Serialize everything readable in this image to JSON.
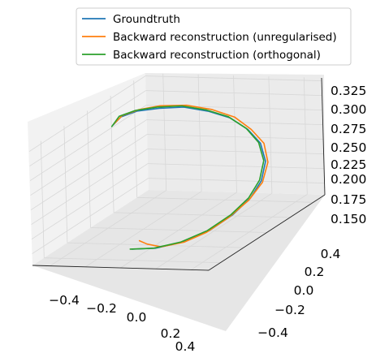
{
  "chart_data": {
    "type": "line",
    "projection": "3d",
    "title": "",
    "xlabel": "",
    "ylabel": "",
    "zlabel": "",
    "xlim": [
      -0.5,
      0.5
    ],
    "ylim": [
      -0.5,
      0.5
    ],
    "zlim": [
      0.13,
      0.33
    ],
    "grid": true,
    "legend_position": "top-right",
    "ticks": {
      "x": [
        "−0.4",
        "−0.2",
        "0.0",
        "0.2",
        "0.4"
      ],
      "y": [
        "−0.4",
        "−0.2",
        "0.0",
        "0.2",
        "0.4"
      ],
      "z": [
        "0.150",
        "0.175",
        "0.200",
        "0.225",
        "0.250",
        "0.275",
        "0.300",
        "0.325"
      ]
    },
    "series": [
      {
        "name": "Groundtruth",
        "color": "#1f77b4",
        "points": [
          [
            -0.02,
            -0.37,
            0.145
          ],
          [
            0.1,
            -0.35,
            0.145
          ],
          [
            0.22,
            -0.3,
            0.15
          ],
          [
            0.32,
            -0.22,
            0.16
          ],
          [
            0.39,
            -0.12,
            0.175
          ],
          [
            0.42,
            -0.01,
            0.19
          ],
          [
            0.41,
            0.1,
            0.205
          ],
          [
            0.37,
            0.2,
            0.225
          ],
          [
            0.29,
            0.28,
            0.245
          ],
          [
            0.18,
            0.34,
            0.26
          ],
          [
            0.06,
            0.37,
            0.275
          ],
          [
            -0.06,
            0.37,
            0.285
          ],
          [
            -0.18,
            0.34,
            0.295
          ],
          [
            -0.28,
            0.28,
            0.3
          ],
          [
            -0.35,
            0.2,
            0.305
          ],
          [
            -0.39,
            0.12,
            0.305
          ],
          [
            -0.39,
            0.05,
            0.3
          ]
        ]
      },
      {
        "name": "Backward reconstruction (unregularised)",
        "color": "#ff7f0e",
        "points": [
          [
            -0.05,
            -0.26,
            0.145
          ],
          [
            0.02,
            -0.3,
            0.145
          ],
          [
            0.12,
            -0.33,
            0.145
          ],
          [
            0.23,
            -0.3,
            0.15
          ],
          [
            0.32,
            -0.24,
            0.16
          ],
          [
            0.39,
            -0.15,
            0.175
          ],
          [
            0.43,
            -0.04,
            0.19
          ],
          [
            0.43,
            0.08,
            0.205
          ],
          [
            0.39,
            0.19,
            0.225
          ],
          [
            0.31,
            0.28,
            0.245
          ],
          [
            0.2,
            0.34,
            0.26
          ],
          [
            0.08,
            0.38,
            0.275
          ],
          [
            -0.05,
            0.38,
            0.287
          ],
          [
            -0.17,
            0.35,
            0.297
          ],
          [
            -0.28,
            0.29,
            0.303
          ],
          [
            -0.35,
            0.21,
            0.306
          ],
          [
            -0.39,
            0.13,
            0.306
          ],
          [
            -0.39,
            0.06,
            0.301
          ]
        ]
      },
      {
        "name": "Backward reconstruction (orthogonal)",
        "color": "#2ca02c",
        "points": [
          [
            -0.03,
            -0.37,
            0.145
          ],
          [
            0.09,
            -0.35,
            0.145
          ],
          [
            0.21,
            -0.3,
            0.15
          ],
          [
            0.31,
            -0.22,
            0.16
          ],
          [
            0.38,
            -0.12,
            0.175
          ],
          [
            0.41,
            -0.01,
            0.19
          ],
          [
            0.4,
            0.1,
            0.206
          ],
          [
            0.36,
            0.2,
            0.226
          ],
          [
            0.28,
            0.28,
            0.246
          ],
          [
            0.17,
            0.34,
            0.262
          ],
          [
            0.05,
            0.37,
            0.277
          ],
          [
            -0.07,
            0.37,
            0.287
          ],
          [
            -0.19,
            0.34,
            0.297
          ],
          [
            -0.29,
            0.28,
            0.302
          ],
          [
            -0.36,
            0.2,
            0.306
          ],
          [
            -0.4,
            0.12,
            0.306
          ],
          [
            -0.39,
            0.04,
            0.299
          ]
        ]
      }
    ]
  }
}
